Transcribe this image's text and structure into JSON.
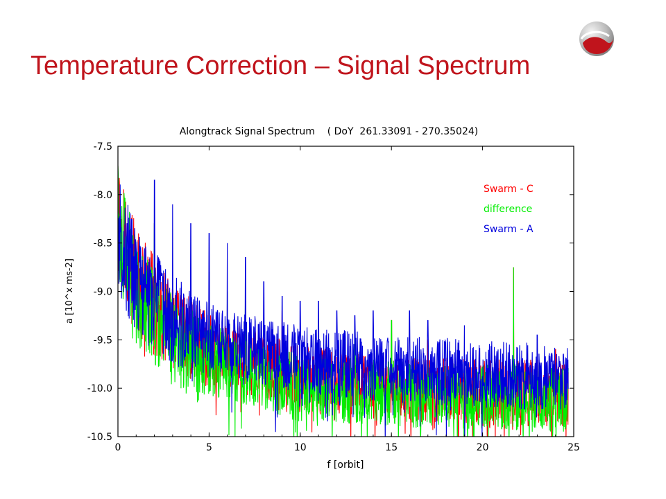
{
  "slide": {
    "title": "Temperature Correction – Signal Spectrum",
    "logo_icon": "swoosh-logo"
  },
  "chart_data": {
    "type": "line",
    "title": "Alongtrack Signal Spectrum    ( DoY  261.33091 - 270.35024)",
    "xlabel": "f [orbit]",
    "ylabel": "a [10^x ms-2]",
    "xlim": [
      0,
      25
    ],
    "ylim": [
      -10.5,
      -7.5
    ],
    "x_ticks": [
      0,
      5,
      10,
      15,
      20,
      25
    ],
    "y_ticks": [
      -7.5,
      -8.0,
      -8.5,
      -9.0,
      -9.5,
      -10.0,
      -10.5
    ],
    "x_tick_labels": [
      "0",
      "5",
      "10",
      "15",
      "20",
      "25"
    ],
    "y_tick_labels": [
      "-7.5",
      "-8.0",
      "-8.5",
      "-9.0",
      "-9.5",
      "-10.0",
      "-10.5"
    ],
    "x_range_of_data": [
      0,
      24.7
    ],
    "grid": false,
    "legend": "top-right",
    "series": [
      {
        "name": "Swarm - C",
        "color": "#ff0000",
        "envelope": [
          [
            0,
            -8.2
          ],
          [
            1,
            -8.9
          ],
          [
            3,
            -9.4
          ],
          [
            5,
            -9.6
          ],
          [
            10,
            -9.9
          ],
          [
            15,
            -10.0
          ],
          [
            20,
            -10.05
          ],
          [
            24.7,
            -10.05
          ]
        ],
        "peaks": [
          [
            0,
            -7.7
          ],
          [
            2,
            -8.3
          ],
          [
            5,
            -8.8
          ],
          [
            6,
            -9.0
          ],
          [
            7,
            -9.1
          ],
          [
            9,
            -9.2
          ],
          [
            13,
            -9.4
          ],
          [
            15,
            -9.3
          ],
          [
            17,
            -9.5
          ],
          [
            19,
            -9.6
          ],
          [
            21.7,
            -8.75
          ],
          [
            24,
            -9.6
          ]
        ]
      },
      {
        "name": "difference",
        "color": "#00ee00",
        "envelope": [
          [
            0,
            -8.3
          ],
          [
            1,
            -9.0
          ],
          [
            3,
            -9.5
          ],
          [
            5,
            -9.7
          ],
          [
            10,
            -10.0
          ],
          [
            15,
            -10.05
          ],
          [
            20,
            -10.1
          ],
          [
            24.7,
            -10.1
          ]
        ],
        "peaks": [
          [
            0,
            -7.7
          ],
          [
            2,
            -8.3
          ],
          [
            5,
            -8.8
          ],
          [
            6,
            -9.0
          ],
          [
            7,
            -9.1
          ],
          [
            11,
            -9.3
          ],
          [
            13,
            -9.4
          ],
          [
            15,
            -9.3
          ],
          [
            21.7,
            -8.75
          ]
        ]
      },
      {
        "name": "Swarm - A",
        "color": "#0000dd",
        "envelope": [
          [
            0,
            -8.4
          ],
          [
            1,
            -8.9
          ],
          [
            3,
            -9.3
          ],
          [
            5,
            -9.5
          ],
          [
            10,
            -9.7
          ],
          [
            15,
            -9.8
          ],
          [
            20,
            -9.85
          ],
          [
            24.7,
            -9.9
          ]
        ],
        "peaks": [
          [
            0.5,
            -8.3
          ],
          [
            1.2,
            -8.7
          ],
          [
            2,
            -7.85
          ],
          [
            3,
            -8.1
          ],
          [
            4,
            -8.3
          ],
          [
            5,
            -8.4
          ],
          [
            6,
            -8.5
          ],
          [
            7,
            -8.65
          ],
          [
            8,
            -8.9
          ],
          [
            9,
            -9.05
          ],
          [
            10,
            -9.1
          ],
          [
            11,
            -9.1
          ],
          [
            12,
            -9.2
          ],
          [
            13,
            -9.25
          ],
          [
            14,
            -9.2
          ],
          [
            16,
            -9.2
          ],
          [
            17,
            -9.3
          ],
          [
            19,
            -9.35
          ],
          [
            23,
            -9.45
          ]
        ]
      }
    ]
  }
}
